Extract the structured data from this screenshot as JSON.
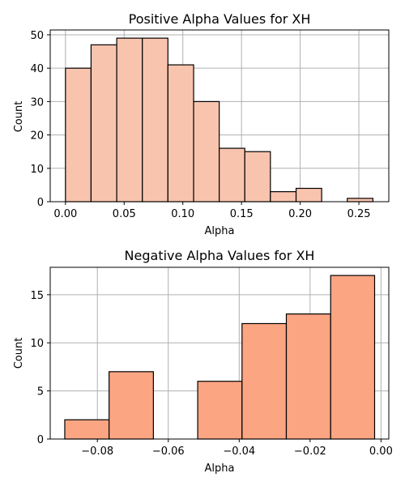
{
  "chart_data": [
    {
      "type": "bar",
      "title": "Positive Alpha Values for XH",
      "xlabel": "Alpha",
      "ylabel": "Count",
      "color": "#f9c4ae",
      "edgecolor": "#000000",
      "grid": true,
      "xlim": [
        -0.013,
        0.2755
      ],
      "ylim": [
        0,
        51.45
      ],
      "xticks": [
        0.0,
        0.05,
        0.1,
        0.15,
        0.2,
        0.25
      ],
      "xtick_labels": [
        "0.00",
        "0.05",
        "0.10",
        "0.15",
        "0.20",
        "0.25"
      ],
      "yticks": [
        0,
        10,
        20,
        30,
        40,
        50
      ],
      "ytick_labels": [
        "0",
        "10",
        "20",
        "30",
        "40",
        "50"
      ],
      "bins": [
        {
          "x0": 0.0,
          "x1": 0.0218,
          "count": 40
        },
        {
          "x0": 0.0218,
          "x1": 0.0437,
          "count": 47
        },
        {
          "x0": 0.0437,
          "x1": 0.0655,
          "count": 49
        },
        {
          "x0": 0.0655,
          "x1": 0.0873,
          "count": 49
        },
        {
          "x0": 0.0873,
          "x1": 0.1092,
          "count": 41
        },
        {
          "x0": 0.1092,
          "x1": 0.131,
          "count": 30
        },
        {
          "x0": 0.131,
          "x1": 0.1528,
          "count": 16
        },
        {
          "x0": 0.1528,
          "x1": 0.1746,
          "count": 15
        },
        {
          "x0": 0.1746,
          "x1": 0.1965,
          "count": 3
        },
        {
          "x0": 0.1965,
          "x1": 0.2183,
          "count": 4
        },
        {
          "x0": 0.2183,
          "x1": 0.2401,
          "count": 0
        },
        {
          "x0": 0.2401,
          "x1": 0.262,
          "count": 1
        }
      ]
    },
    {
      "type": "bar",
      "title": "Negative Alpha Values for XH",
      "xlabel": "Alpha",
      "ylabel": "Count",
      "color": "#fca583",
      "edgecolor": "#000000",
      "grid": true,
      "xlim": [
        -0.0933,
        0.0022
      ],
      "ylim": [
        0,
        17.85
      ],
      "xticks": [
        -0.08,
        -0.06,
        -0.04,
        -0.02,
        0.0
      ],
      "xtick_labels": [
        "−0.08",
        "−0.06",
        "−0.04",
        "−0.02",
        "0.00"
      ],
      "yticks": [
        0,
        5,
        10,
        15
      ],
      "ytick_labels": [
        "0",
        "5",
        "10",
        "15"
      ],
      "bins": [
        {
          "x0": -0.0892,
          "x1": -0.0767,
          "count": 2
        },
        {
          "x0": -0.0767,
          "x1": -0.0642,
          "count": 7
        },
        {
          "x0": -0.0642,
          "x1": -0.0517,
          "count": 0
        },
        {
          "x0": -0.0517,
          "x1": -0.0392,
          "count": 6
        },
        {
          "x0": -0.0392,
          "x1": -0.0267,
          "count": 12
        },
        {
          "x0": -0.0267,
          "x1": -0.0142,
          "count": 13
        },
        {
          "x0": -0.0142,
          "x1": -0.0018,
          "count": 17
        }
      ]
    }
  ]
}
